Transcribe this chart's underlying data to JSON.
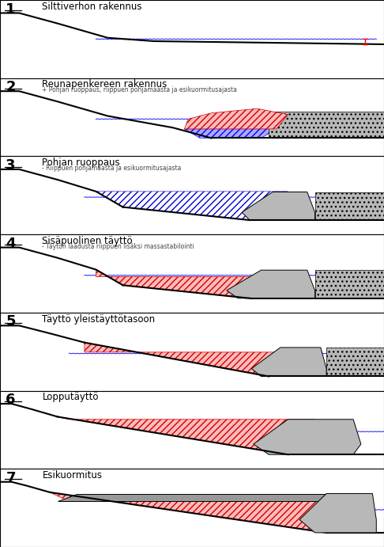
{
  "panels": [
    {
      "number": "1",
      "title": "Silttiverhon rakennus",
      "subtitle": ""
    },
    {
      "number": "2",
      "title": "Reunapenkereen rakennus",
      "subtitle": "+ Pohjan ruoppaus, riippuen pohjamaasta ja esikuormitusajasta"
    },
    {
      "number": "3",
      "title": "Pohjan ruoppaus",
      "subtitle": "- Riippuen pohjamaasta ja esikuormitusajasta"
    },
    {
      "number": "4",
      "title": "Sisäpuolinen täyttö",
      "subtitle": "- Täytön laadusta riippuen lisäksi massastabilointi"
    },
    {
      "number": "5",
      "title": "Täyttö yleistäyttötasoon",
      "subtitle": ""
    },
    {
      "number": "6",
      "title": "Lopputäyttö",
      "subtitle": ""
    },
    {
      "number": "7",
      "title": "Esikuormitus",
      "subtitle": ""
    }
  ],
  "red_fill": "#ffbbbb",
  "red_edge": "#cc0000",
  "gray_light": "#b8b8b8",
  "gray_mid": "#999999",
  "blue_light": "#aaaaff",
  "water_blue": "#0000cc",
  "dot_hatch_color": "#888888"
}
